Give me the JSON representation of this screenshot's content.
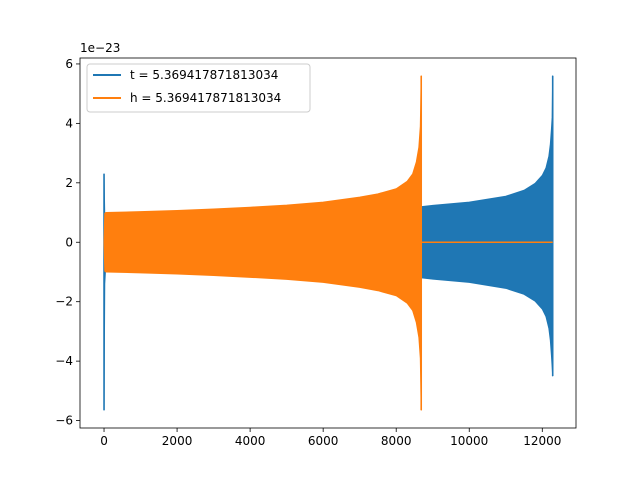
{
  "chart_data": {
    "type": "line",
    "title": "",
    "xlabel": "",
    "ylabel": "",
    "y_offset_label": "1e−23",
    "xlim": [
      -658,
      12923
    ],
    "ylim": [
      -6.25,
      6.2
    ],
    "x_ticks": [
      0,
      2000,
      4000,
      6000,
      8000,
      10000,
      12000
    ],
    "x_tick_labels": [
      "0",
      "2000",
      "4000",
      "6000",
      "8000",
      "10000",
      "12000"
    ],
    "y_ticks": [
      -6,
      -4,
      -2,
      0,
      2,
      4,
      6
    ],
    "y_tick_labels": [
      "−6",
      "−4",
      "−2",
      "0",
      "2",
      "4",
      "6"
    ],
    "grid": false,
    "legend_position": "top-left",
    "series": [
      {
        "name": "t = 5.369417871813034",
        "color": "#1f77b4",
        "style": "dense-oscillation",
        "envelope": {
          "x": [
            0,
            20,
            45,
            100,
            1000,
            2000,
            4000,
            6000,
            8000,
            8700,
            9000,
            10000,
            11000,
            11500,
            11800,
            12000,
            12100,
            12180,
            12220,
            12250,
            12270,
            12285
          ],
          "upper": [
            2.3,
            0.9,
            0.85,
            0.85,
            0.87,
            0.89,
            0.92,
            0.98,
            1.12,
            1.2,
            1.24,
            1.35,
            1.55,
            1.75,
            1.98,
            2.25,
            2.5,
            2.9,
            3.3,
            3.8,
            4.2,
            5.6
          ],
          "lower": [
            -5.65,
            -1.4,
            -0.85,
            -0.85,
            -0.87,
            -0.89,
            -0.92,
            -0.98,
            -1.12,
            -1.2,
            -1.24,
            -1.35,
            -1.55,
            -1.75,
            -1.98,
            -2.25,
            -2.5,
            -2.9,
            -3.3,
            -3.8,
            -4.2,
            -4.5
          ]
        },
        "trailing_zero_to": 12285
      },
      {
        "name": "h = 5.369417871813034",
        "color": "#ff7f0e",
        "style": "dense-oscillation",
        "envelope": {
          "x": [
            0,
            20,
            50,
            1000,
            2000,
            3000,
            4000,
            5000,
            6000,
            7000,
            7500,
            8000,
            8300,
            8450,
            8550,
            8620,
            8660,
            8685
          ],
          "upper": [
            0,
            0.97,
            1.0,
            1.03,
            1.07,
            1.12,
            1.18,
            1.25,
            1.35,
            1.52,
            1.63,
            1.8,
            2.05,
            2.3,
            2.7,
            3.2,
            3.9,
            5.6
          ],
          "lower": [
            0,
            -0.97,
            -1.0,
            -1.03,
            -1.07,
            -1.12,
            -1.18,
            -1.25,
            -1.35,
            -1.52,
            -1.63,
            -1.8,
            -2.05,
            -2.3,
            -2.7,
            -3.2,
            -3.9,
            -5.65
          ]
        },
        "trailing_zero_to": 12285
      }
    ]
  }
}
